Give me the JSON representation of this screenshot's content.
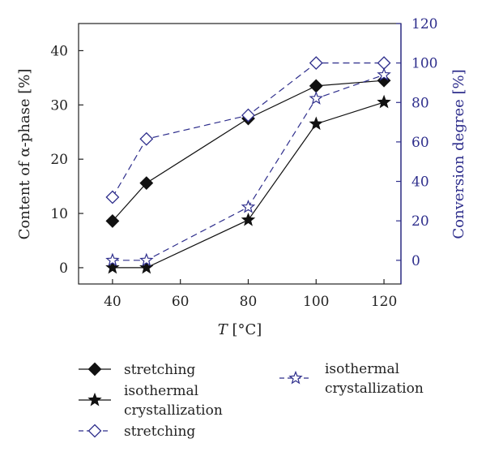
{
  "chart_data": {
    "type": "line",
    "x": [
      40,
      50,
      80,
      100,
      120
    ],
    "xlabel_italic": "T",
    "xlabel_rest": " [°C]",
    "xlim": [
      30,
      125
    ],
    "xticks": [
      40,
      60,
      80,
      100,
      120
    ],
    "ylabel_left": "Content of α-phase [%]",
    "ylim_left": [
      -3,
      45
    ],
    "yticks_left": [
      0,
      10,
      20,
      30,
      40
    ],
    "ylabel_right": "Conversion degree [%]",
    "ylim_right": [
      -12,
      120
    ],
    "yticks_right": [
      0,
      20,
      40,
      60,
      80,
      100,
      120
    ],
    "right_axis_color": "#2e2e8c",
    "grid": false,
    "series": [
      {
        "name": "stretching",
        "axis": "left",
        "marker": "filled-diamond",
        "line": "solid",
        "color": "#111111",
        "values": [
          8.6,
          15.6,
          27.5,
          33.5,
          34.5
        ]
      },
      {
        "name": "isothermal crystallization",
        "axis": "left",
        "marker": "filled-star",
        "line": "solid",
        "color": "#111111",
        "values": [
          0,
          0,
          8.8,
          26.5,
          30.5
        ]
      },
      {
        "name": "stretching",
        "axis": "right",
        "marker": "open-diamond",
        "line": "dashed",
        "color": "#2e2e8c",
        "values": [
          32,
          61.5,
          73.5,
          100,
          100
        ]
      },
      {
        "name": "isothermal crystallization",
        "axis": "right",
        "marker": "open-star",
        "line": "dashed",
        "color": "#2e2e8c",
        "values": [
          0,
          0,
          27,
          82,
          94
        ]
      }
    ],
    "legend": {
      "placement": "bottom",
      "items": [
        {
          "lines": [
            "stretching"
          ],
          "marker": "filled-diamond",
          "line": "solid",
          "color": "#111111"
        },
        {
          "lines": [
            "isothermal",
            "crystallization"
          ],
          "marker": "filled-star",
          "line": "solid",
          "color": "#111111"
        },
        {
          "lines": [
            "stretching"
          ],
          "marker": "open-diamond",
          "line": "dashed",
          "color": "#2e2e8c"
        },
        {
          "lines": [
            "isothermal",
            "crystallization"
          ],
          "marker": "open-star",
          "line": "dashed",
          "color": "#2e2e8c"
        }
      ]
    }
  }
}
